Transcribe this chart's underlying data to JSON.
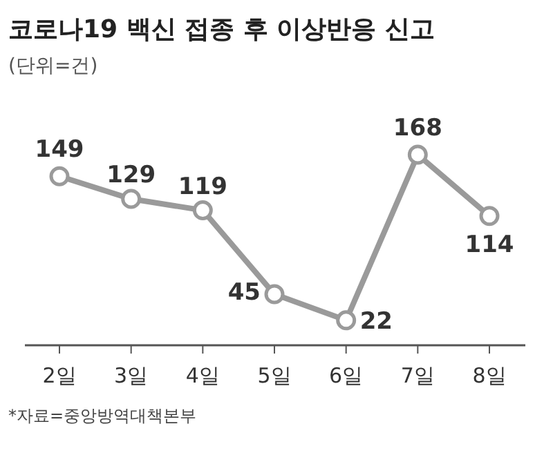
{
  "chart_data": {
    "type": "line",
    "title": "코로나19 백신 접종 후 이상반응 신고",
    "subtitle": "(단위=건)",
    "annotations": [
      "*자료=중앙방역대책본부"
    ],
    "categories": [
      "2일",
      "3일",
      "4일",
      "5일",
      "6일",
      "7일",
      "8일"
    ],
    "series": [
      {
        "color": "#9a9a9a",
        "values": [
          149,
          129,
          119,
          45,
          22,
          168,
          114
        ]
      }
    ],
    "data_labels": true,
    "marker": "circle"
  }
}
